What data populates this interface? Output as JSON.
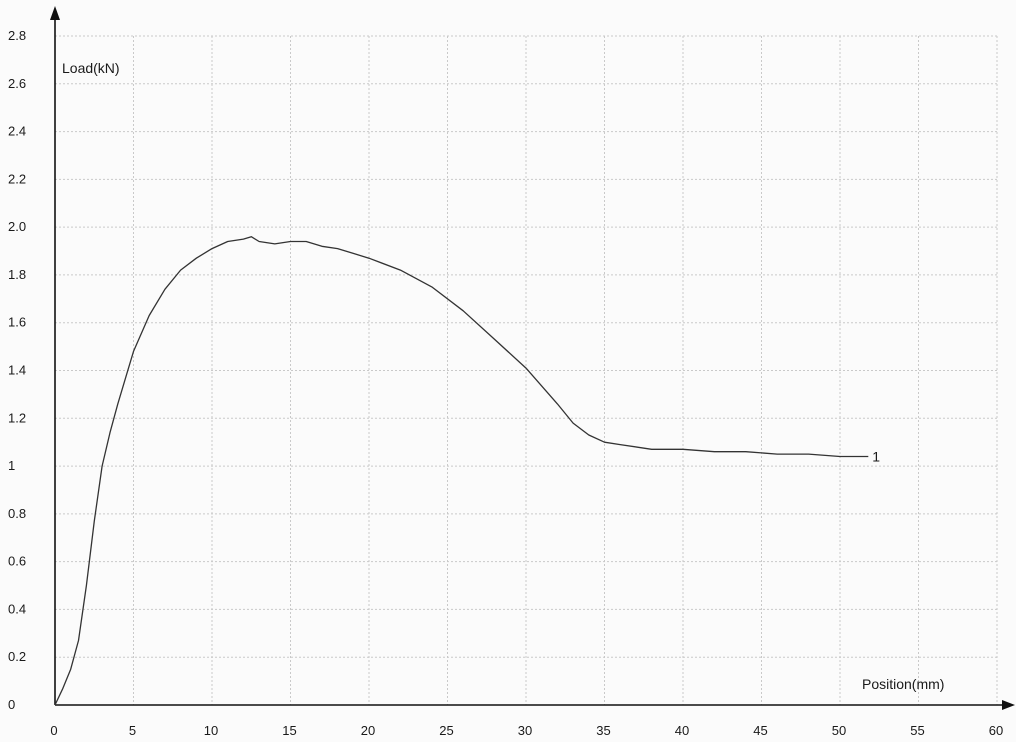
{
  "chart_data": {
    "type": "line",
    "xlabel": "Position(mm)",
    "ylabel": "Load(kN)",
    "xlim": [
      0,
      60
    ],
    "ylim": [
      0,
      2.8
    ],
    "x_ticks": [
      "0",
      "5",
      "10",
      "15",
      "20",
      "25",
      "30",
      "35",
      "40",
      "45",
      "50",
      "55",
      "60"
    ],
    "y_ticks": [
      "0",
      "0.2",
      "0.4",
      "0.6",
      "0.8",
      "1",
      "1.2",
      "1.4",
      "1.6",
      "1.8",
      "2.0",
      "2.2",
      "2.4",
      "2.6",
      "2.8"
    ],
    "grid": true,
    "series": [
      {
        "label": "1",
        "color": "#333333",
        "x": [
          0,
          0.5,
          1,
          1.5,
          2,
          2.5,
          3,
          3.5,
          4,
          5,
          6,
          7,
          8,
          9,
          10,
          11,
          12,
          12.5,
          13,
          14,
          15,
          16,
          17,
          18,
          19,
          20,
          22,
          24,
          26,
          28,
          30,
          32,
          33,
          34,
          35,
          36,
          38,
          40,
          42,
          44,
          46,
          48,
          50,
          51.8
        ],
        "y": [
          0,
          0.07,
          0.15,
          0.27,
          0.5,
          0.77,
          1.0,
          1.14,
          1.26,
          1.48,
          1.63,
          1.74,
          1.82,
          1.87,
          1.91,
          1.94,
          1.95,
          1.96,
          1.94,
          1.93,
          1.94,
          1.94,
          1.92,
          1.91,
          1.89,
          1.87,
          1.82,
          1.75,
          1.65,
          1.53,
          1.41,
          1.26,
          1.18,
          1.13,
          1.1,
          1.09,
          1.07,
          1.07,
          1.06,
          1.06,
          1.05,
          1.05,
          1.04,
          1.04
        ]
      }
    ]
  }
}
